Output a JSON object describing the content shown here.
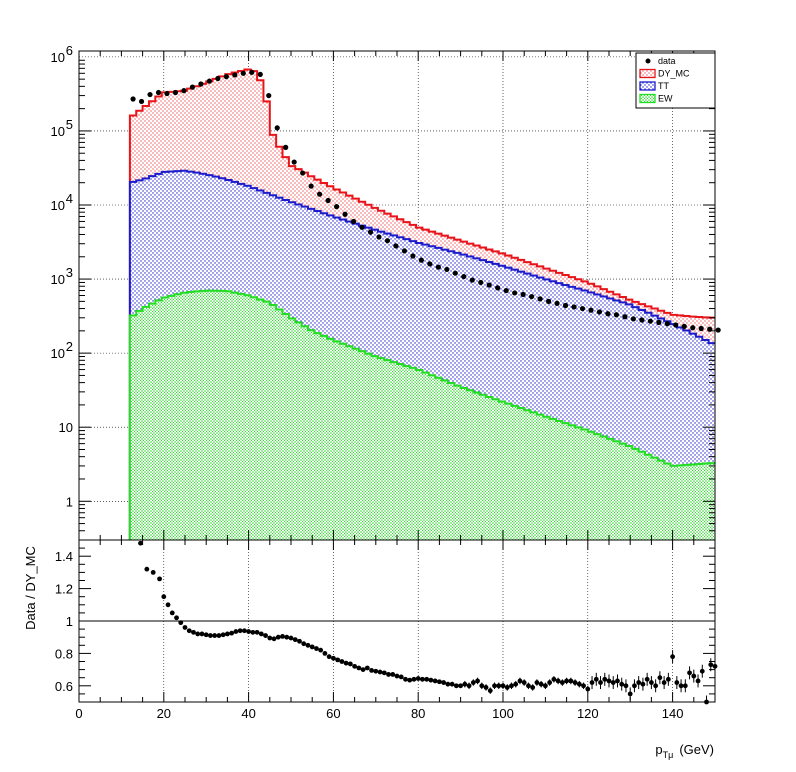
{
  "chart_data": [
    {
      "type": "histogram",
      "scale": "log",
      "xlim": [
        0,
        150
      ],
      "ylim": [
        0.3,
        1200000
      ],
      "grid": true,
      "legend_position": "top-right",
      "yticks": [
        {
          "value": 1,
          "label": "1",
          "exp": ""
        },
        {
          "value": 10,
          "label": "10",
          "exp": ""
        },
        {
          "value": 100,
          "label": "10",
          "exp": "2"
        },
        {
          "value": 1000,
          "label": "10",
          "exp": "3"
        },
        {
          "value": 10000,
          "label": "10",
          "exp": "4"
        },
        {
          "value": 100000,
          "label": "10",
          "exp": "5"
        },
        {
          "value": 1000000,
          "label": "10",
          "exp": "6"
        }
      ],
      "legend": [
        {
          "label": "data",
          "style": "marker",
          "color": "#000000"
        },
        {
          "label": "DY_MC",
          "style": "hatch",
          "color": "#e8141a"
        },
        {
          "label": "TT",
          "style": "hatch",
          "color": "#1c1ccc"
        },
        {
          "label": "EW",
          "style": "hatch",
          "color": "#22dd22"
        }
      ],
      "series": [
        {
          "name": "DY_MC",
          "color": "#e8141a",
          "x": [
            12,
            20,
            25,
            30,
            35,
            38,
            40,
            41,
            42,
            44,
            45,
            46,
            48,
            50,
            52,
            55,
            60,
            70,
            80,
            90,
            100,
            110,
            120,
            130,
            140,
            145,
            150
          ],
          "values": [
            150000,
            330000,
            350000,
            450000,
            580000,
            640000,
            680000,
            650000,
            620000,
            320000,
            120000,
            80000,
            52000,
            34000,
            30000,
            24000,
            17000,
            9000,
            5000,
            3300,
            2200,
            1400,
            900,
            520,
            330,
            310,
            300
          ]
        },
        {
          "name": "TT",
          "color": "#1c1ccc",
          "x": [
            12,
            15,
            20,
            25,
            30,
            35,
            40,
            50,
            60,
            70,
            80,
            90,
            100,
            110,
            120,
            130,
            140,
            150
          ],
          "values": [
            20000,
            22000,
            28000,
            29000,
            26000,
            22000,
            18000,
            11000,
            7000,
            4600,
            3100,
            2200,
            1500,
            1000,
            680,
            450,
            250,
            130
          ]
        },
        {
          "name": "EW",
          "color": "#22dd22",
          "x": [
            12,
            15,
            20,
            25,
            30,
            35,
            40,
            45,
            50,
            55,
            60,
            70,
            80,
            90,
            100,
            110,
            120,
            130,
            140,
            150
          ],
          "values": [
            300,
            400,
            560,
            660,
            700,
            690,
            600,
            480,
            300,
            200,
            150,
            90,
            60,
            35,
            22,
            14,
            9,
            5.5,
            3,
            3.3
          ]
        },
        {
          "name": "data",
          "color": "#000000",
          "x": [
            12,
            14,
            16,
            18,
            20,
            22,
            24,
            26,
            28,
            30,
            32,
            34,
            36,
            38,
            40,
            42,
            44,
            46,
            48,
            50,
            52,
            54,
            56,
            58,
            60,
            62,
            64,
            66,
            68,
            70,
            72,
            74,
            76,
            78,
            80,
            82,
            84,
            86,
            88,
            90,
            92,
            94,
            96,
            98,
            100,
            102,
            104,
            106,
            108,
            110,
            112,
            114,
            116,
            118,
            120,
            122,
            124,
            126,
            128,
            130,
            132,
            134,
            136,
            138,
            140,
            142,
            144,
            146,
            148,
            150
          ],
          "values": [
            270000,
            250000,
            310000,
            330000,
            320000,
            330000,
            350000,
            390000,
            430000,
            470000,
            510000,
            540000,
            570000,
            600000,
            620000,
            580000,
            300000,
            110000,
            60000,
            38000,
            27000,
            18000,
            14000,
            11500,
            9500,
            7500,
            6000,
            5000,
            4300,
            3700,
            3300,
            2800,
            2400,
            2050,
            1800,
            1600,
            1450,
            1350,
            1200,
            1080,
            970,
            900,
            830,
            760,
            700,
            650,
            620,
            580,
            540,
            500,
            470,
            440,
            420,
            400,
            380,
            360,
            340,
            330,
            310,
            290,
            280,
            270,
            260,
            250,
            240,
            230,
            220,
            215,
            210,
            205
          ]
        }
      ]
    },
    {
      "type": "scatter",
      "ylabel": "Data / DY_MC",
      "xlabel": "p",
      "xlabel_sub": "Tμ",
      "xlabel_unit": "(GeV)",
      "xlim": [
        0,
        150
      ],
      "ylim": [
        0.5,
        1.5
      ],
      "xticks": [
        0,
        20,
        40,
        60,
        80,
        100,
        120,
        140
      ],
      "yticks": [
        0.6,
        0.8,
        1,
        1.2,
        1.4
      ],
      "reference_line": 1,
      "series": [
        {
          "name": "ratio",
          "color": "#000000",
          "x": [
            14.5,
            16,
            17.5,
            19,
            20,
            21,
            22,
            23,
            24,
            25,
            26,
            27,
            28,
            29,
            30,
            31,
            32,
            33,
            34,
            35,
            36,
            37,
            38,
            39,
            40,
            41,
            42,
            43,
            44,
            45,
            46,
            47,
            48,
            49,
            50,
            51,
            52,
            53,
            54,
            55,
            56,
            57,
            58,
            59,
            60,
            61,
            62,
            63,
            64,
            65,
            66,
            67,
            68,
            69,
            70,
            71,
            72,
            73,
            74,
            75,
            76,
            77,
            78,
            79,
            80,
            81,
            82,
            83,
            84,
            85,
            86,
            87,
            88,
            89,
            90,
            91,
            92,
            93,
            94,
            95,
            96,
            97,
            98,
            99,
            100,
            101,
            102,
            103,
            104,
            105,
            106,
            107,
            108,
            109,
            110,
            111,
            112,
            113,
            114,
            115,
            116,
            117,
            118,
            119,
            120,
            121,
            122,
            123,
            124,
            125,
            126,
            127,
            128,
            129,
            130,
            131,
            132,
            133,
            134,
            135,
            136,
            137,
            138,
            139,
            140,
            141,
            142,
            143,
            144,
            145,
            146,
            147,
            148,
            149,
            150
          ],
          "values": [
            1.48,
            1.32,
            1.3,
            1.26,
            1.15,
            1.1,
            1.05,
            1.02,
            0.99,
            0.96,
            0.94,
            0.93,
            0.92,
            0.92,
            0.915,
            0.91,
            0.91,
            0.91,
            0.915,
            0.92,
            0.925,
            0.935,
            0.94,
            0.94,
            0.935,
            0.93,
            0.93,
            0.92,
            0.91,
            0.895,
            0.89,
            0.9,
            0.905,
            0.9,
            0.895,
            0.885,
            0.875,
            0.86,
            0.85,
            0.84,
            0.83,
            0.82,
            0.8,
            0.78,
            0.77,
            0.76,
            0.75,
            0.74,
            0.735,
            0.72,
            0.71,
            0.7,
            0.71,
            0.695,
            0.69,
            0.685,
            0.68,
            0.67,
            0.67,
            0.66,
            0.655,
            0.64,
            0.635,
            0.64,
            0.645,
            0.64,
            0.64,
            0.635,
            0.63,
            0.625,
            0.62,
            0.61,
            0.61,
            0.6,
            0.6,
            0.61,
            0.6,
            0.62,
            0.63,
            0.6,
            0.59,
            0.57,
            0.6,
            0.6,
            0.6,
            0.59,
            0.6,
            0.61,
            0.63,
            0.62,
            0.6,
            0.59,
            0.62,
            0.61,
            0.6,
            0.62,
            0.64,
            0.63,
            0.62,
            0.63,
            0.63,
            0.62,
            0.61,
            0.6,
            0.58,
            0.62,
            0.64,
            0.62,
            0.64,
            0.63,
            0.62,
            0.63,
            0.61,
            0.6,
            0.55,
            0.6,
            0.62,
            0.61,
            0.64,
            0.62,
            0.6,
            0.65,
            0.62,
            0.64,
            0.78,
            0.62,
            0.6,
            0.6,
            0.68,
            0.66,
            0.63,
            0.69,
            0.5,
            0.73,
            0.72
          ]
        }
      ]
    }
  ]
}
